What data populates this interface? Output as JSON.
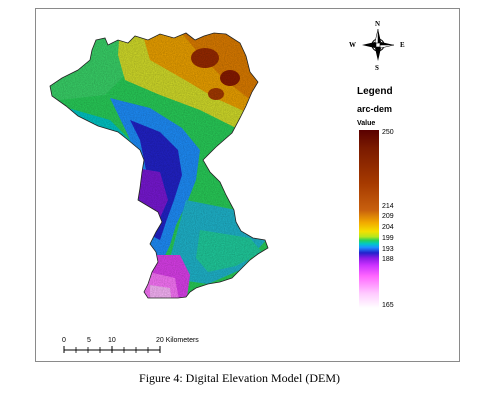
{
  "compass": {
    "n": "N",
    "s": "S",
    "e": "E",
    "w": "W"
  },
  "legend": {
    "title": "Legend",
    "layer": "arc-dem",
    "value_label": "Value",
    "ticks": [
      "250",
      "214",
      "209",
      "204",
      "199",
      "193",
      "188",
      "165"
    ]
  },
  "scale_bar": {
    "labels": [
      "0",
      "5",
      "10",
      "20 Kilometers"
    ]
  },
  "caption": "Figure 4: Digital Elevation Model (DEM)",
  "colors": {
    "high": "#5a0000",
    "orange": "#e08a00",
    "yellow": "#f4e000",
    "green": "#29d15a",
    "cyan": "#00c8c8",
    "blue": "#2222cc",
    "purple": "#8a1ae6",
    "magenta": "#ff66ff",
    "low": "#ffffff"
  }
}
